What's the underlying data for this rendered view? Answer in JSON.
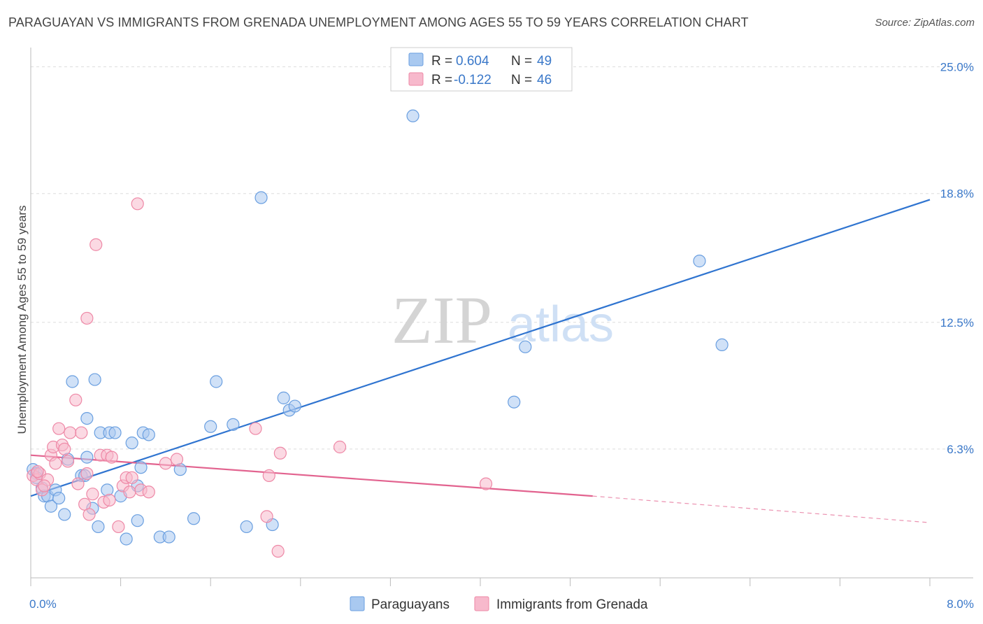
{
  "title": "PARAGUAYAN VS IMMIGRANTS FROM GRENADA UNEMPLOYMENT AMONG AGES 55 TO 59 YEARS CORRELATION CHART",
  "source": "Source: ZipAtlas.com",
  "watermark": {
    "zip": "ZIP",
    "atlas": "atlas"
  },
  "colors": {
    "blue_fill": "#a9c9f0",
    "blue_stroke": "#6a9fe0",
    "blue_line": "#2f74d0",
    "pink_fill": "#f7b9cc",
    "pink_stroke": "#ee88a6",
    "pink_line": "#e2638f",
    "grid": "#dddddd",
    "tick_text": "#3a78c9"
  },
  "legend": {
    "rows": [
      {
        "r_label": "R = ",
        "r_value": "0.604",
        "n_label": "N = ",
        "n_value": "49"
      },
      {
        "r_label": "R = ",
        "r_value": "-0.122",
        "n_label": "N = ",
        "n_value": "46"
      }
    ]
  },
  "chart_data": {
    "type": "scatter",
    "xlabel": "",
    "ylabel": "Unemployment Among Ages 55 to 59 years",
    "xlim": [
      0,
      8
    ],
    "ylim": [
      0,
      25.6
    ],
    "x_tick_labels": [
      "0.0%",
      "8.0%"
    ],
    "y_ticks": [
      6.3,
      12.5,
      18.8,
      25.0
    ],
    "y_tick_labels": [
      "6.3%",
      "12.5%",
      "18.8%",
      "25.0%"
    ],
    "series": [
      {
        "name": "Paraguayans",
        "r": 0.604,
        "n": 49,
        "trend": {
          "x": [
            0,
            8
          ],
          "y": [
            4.0,
            18.5
          ],
          "dashed_to": null
        },
        "points": [
          [
            0.02,
            5.3
          ],
          [
            0.05,
            5.1
          ],
          [
            0.05,
            4.9
          ],
          [
            0.1,
            4.4
          ],
          [
            0.12,
            4.0
          ],
          [
            0.15,
            4.0
          ],
          [
            0.18,
            3.5
          ],
          [
            0.22,
            4.3
          ],
          [
            0.25,
            3.9
          ],
          [
            0.3,
            3.1
          ],
          [
            0.33,
            5.8
          ],
          [
            0.37,
            9.6
          ],
          [
            0.45,
            5.0
          ],
          [
            0.5,
            5.9
          ],
          [
            0.5,
            7.8
          ],
          [
            0.55,
            3.4
          ],
          [
            0.57,
            9.7
          ],
          [
            0.6,
            2.5
          ],
          [
            0.62,
            7.1
          ],
          [
            0.68,
            4.3
          ],
          [
            0.7,
            7.1
          ],
          [
            0.75,
            7.1
          ],
          [
            0.8,
            4.0
          ],
          [
            0.85,
            1.9
          ],
          [
            0.9,
            6.6
          ],
          [
            0.95,
            2.8
          ],
          [
            0.98,
            5.4
          ],
          [
            1.0,
            7.1
          ],
          [
            1.05,
            7.0
          ],
          [
            1.15,
            2.0
          ],
          [
            1.23,
            2.0
          ],
          [
            1.33,
            5.3
          ],
          [
            1.45,
            2.9
          ],
          [
            1.6,
            7.4
          ],
          [
            1.65,
            9.6
          ],
          [
            1.8,
            7.5
          ],
          [
            1.92,
            2.5
          ],
          [
            2.05,
            18.6
          ],
          [
            2.15,
            2.6
          ],
          [
            2.25,
            8.8
          ],
          [
            2.3,
            8.2
          ],
          [
            2.35,
            8.4
          ],
          [
            3.4,
            22.6
          ],
          [
            4.3,
            8.6
          ],
          [
            4.4,
            11.3
          ],
          [
            5.95,
            15.5
          ],
          [
            6.15,
            11.4
          ],
          [
            0.95,
            4.5
          ],
          [
            0.48,
            5.0
          ]
        ]
      },
      {
        "name": "Immigrants from Grenada",
        "r": -0.122,
        "n": 46,
        "trend": {
          "x": [
            0,
            5.0
          ],
          "y": [
            6.0,
            4.0
          ],
          "dashed_to": {
            "x": 8,
            "y": 2.7
          }
        },
        "points": [
          [
            0.02,
            5.0
          ],
          [
            0.05,
            4.8
          ],
          [
            0.08,
            5.1
          ],
          [
            0.1,
            4.3
          ],
          [
            0.15,
            4.8
          ],
          [
            0.18,
            6.0
          ],
          [
            0.2,
            6.4
          ],
          [
            0.22,
            5.6
          ],
          [
            0.25,
            7.3
          ],
          [
            0.28,
            6.5
          ],
          [
            0.3,
            6.3
          ],
          [
            0.33,
            5.7
          ],
          [
            0.35,
            7.1
          ],
          [
            0.4,
            8.7
          ],
          [
            0.42,
            4.6
          ],
          [
            0.45,
            7.1
          ],
          [
            0.48,
            3.6
          ],
          [
            0.5,
            5.1
          ],
          [
            0.5,
            12.7
          ],
          [
            0.52,
            3.1
          ],
          [
            0.55,
            4.1
          ],
          [
            0.58,
            16.3
          ],
          [
            0.62,
            6.0
          ],
          [
            0.65,
            3.7
          ],
          [
            0.68,
            6.0
          ],
          [
            0.7,
            3.8
          ],
          [
            0.72,
            5.9
          ],
          [
            0.78,
            2.5
          ],
          [
            0.82,
            4.5
          ],
          [
            0.85,
            4.9
          ],
          [
            0.88,
            4.2
          ],
          [
            0.9,
            4.9
          ],
          [
            0.95,
            18.3
          ],
          [
            0.98,
            4.3
          ],
          [
            1.05,
            4.2
          ],
          [
            1.2,
            5.6
          ],
          [
            1.3,
            5.8
          ],
          [
            2.0,
            7.3
          ],
          [
            2.1,
            3.0
          ],
          [
            2.12,
            5.0
          ],
          [
            2.2,
            1.3
          ],
          [
            2.22,
            6.1
          ],
          [
            2.75,
            6.4
          ],
          [
            4.05,
            4.6
          ],
          [
            0.06,
            5.2
          ],
          [
            0.12,
            4.5
          ]
        ]
      }
    ],
    "bottom_legend": [
      "Paraguayans",
      "Immigrants from Grenada"
    ]
  }
}
